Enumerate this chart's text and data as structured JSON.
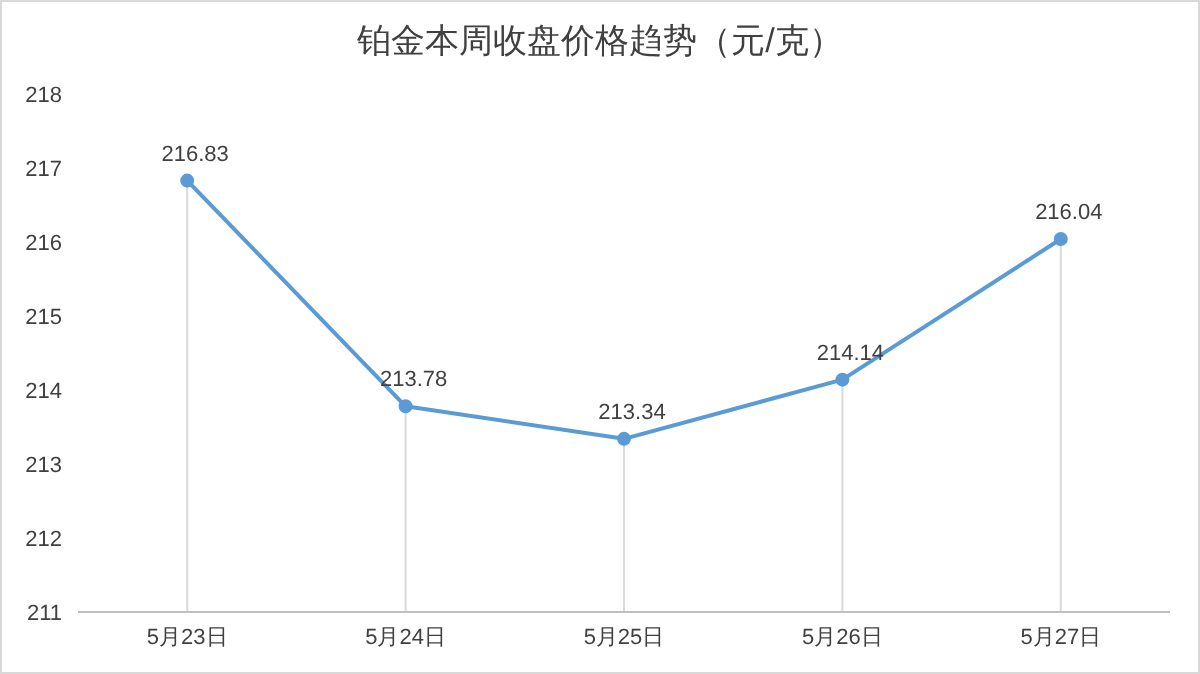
{
  "chart_data": {
    "type": "line",
    "title": "铂金本周收盘价格趋势（元/克）",
    "categories": [
      "5月23日",
      "5月24日",
      "5月25日",
      "5月26日",
      "5月27日"
    ],
    "series": [
      {
        "color": "#5b9bd5",
        "values": [
          216.83,
          213.78,
          213.34,
          214.14,
          216.04
        ]
      }
    ],
    "ylim": [
      211,
      218
    ],
    "yticks": [
      211,
      212,
      213,
      214,
      215,
      216,
      217,
      218
    ],
    "grid": "x",
    "data_labels": true,
    "marker": "circle",
    "line_style": "solid"
  }
}
